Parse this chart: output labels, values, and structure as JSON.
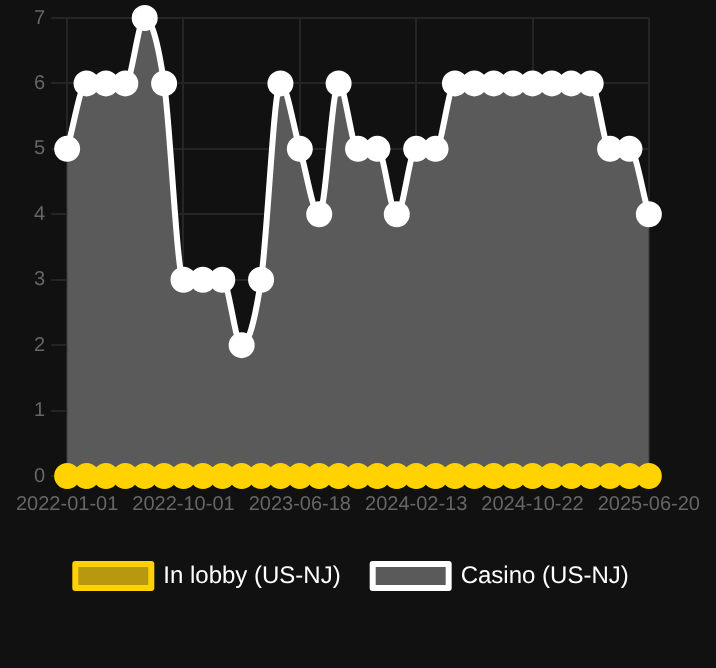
{
  "chart_data": {
    "type": "line",
    "categories": [
      "2022-01-01",
      null,
      null,
      null,
      null,
      null,
      "2022-10-01",
      null,
      null,
      null,
      null,
      null,
      "2023-06-18",
      null,
      null,
      null,
      null,
      null,
      "2024-02-13",
      null,
      null,
      null,
      null,
      null,
      "2024-10-22",
      null,
      null,
      null,
      null,
      null,
      "2025-06-20"
    ],
    "series": [
      {
        "name": "In lobby (US-NJ)",
        "type": "line",
        "color": "#ffd200",
        "values": [
          0,
          0,
          0,
          0,
          0,
          0,
          0,
          0,
          0,
          0,
          0,
          0,
          0,
          0,
          0,
          0,
          0,
          0,
          0,
          0,
          0,
          0,
          0,
          0,
          0,
          0,
          0,
          0,
          0,
          0,
          0
        ]
      },
      {
        "name": "Casino (US-NJ)",
        "type": "area",
        "color": "#ffffff",
        "values": [
          5,
          6,
          6,
          6,
          7,
          6,
          3,
          3,
          3,
          2,
          3,
          6,
          5,
          4,
          6,
          5,
          5,
          4,
          5,
          5,
          6,
          6,
          6,
          6,
          6,
          6,
          6,
          6,
          5,
          5,
          4
        ]
      }
    ],
    "ylim": [
      0,
      7
    ],
    "yticks": [
      0,
      1,
      2,
      3,
      4,
      5,
      6,
      7
    ],
    "grid": true,
    "legend": "bottom",
    "marker": "circle"
  }
}
